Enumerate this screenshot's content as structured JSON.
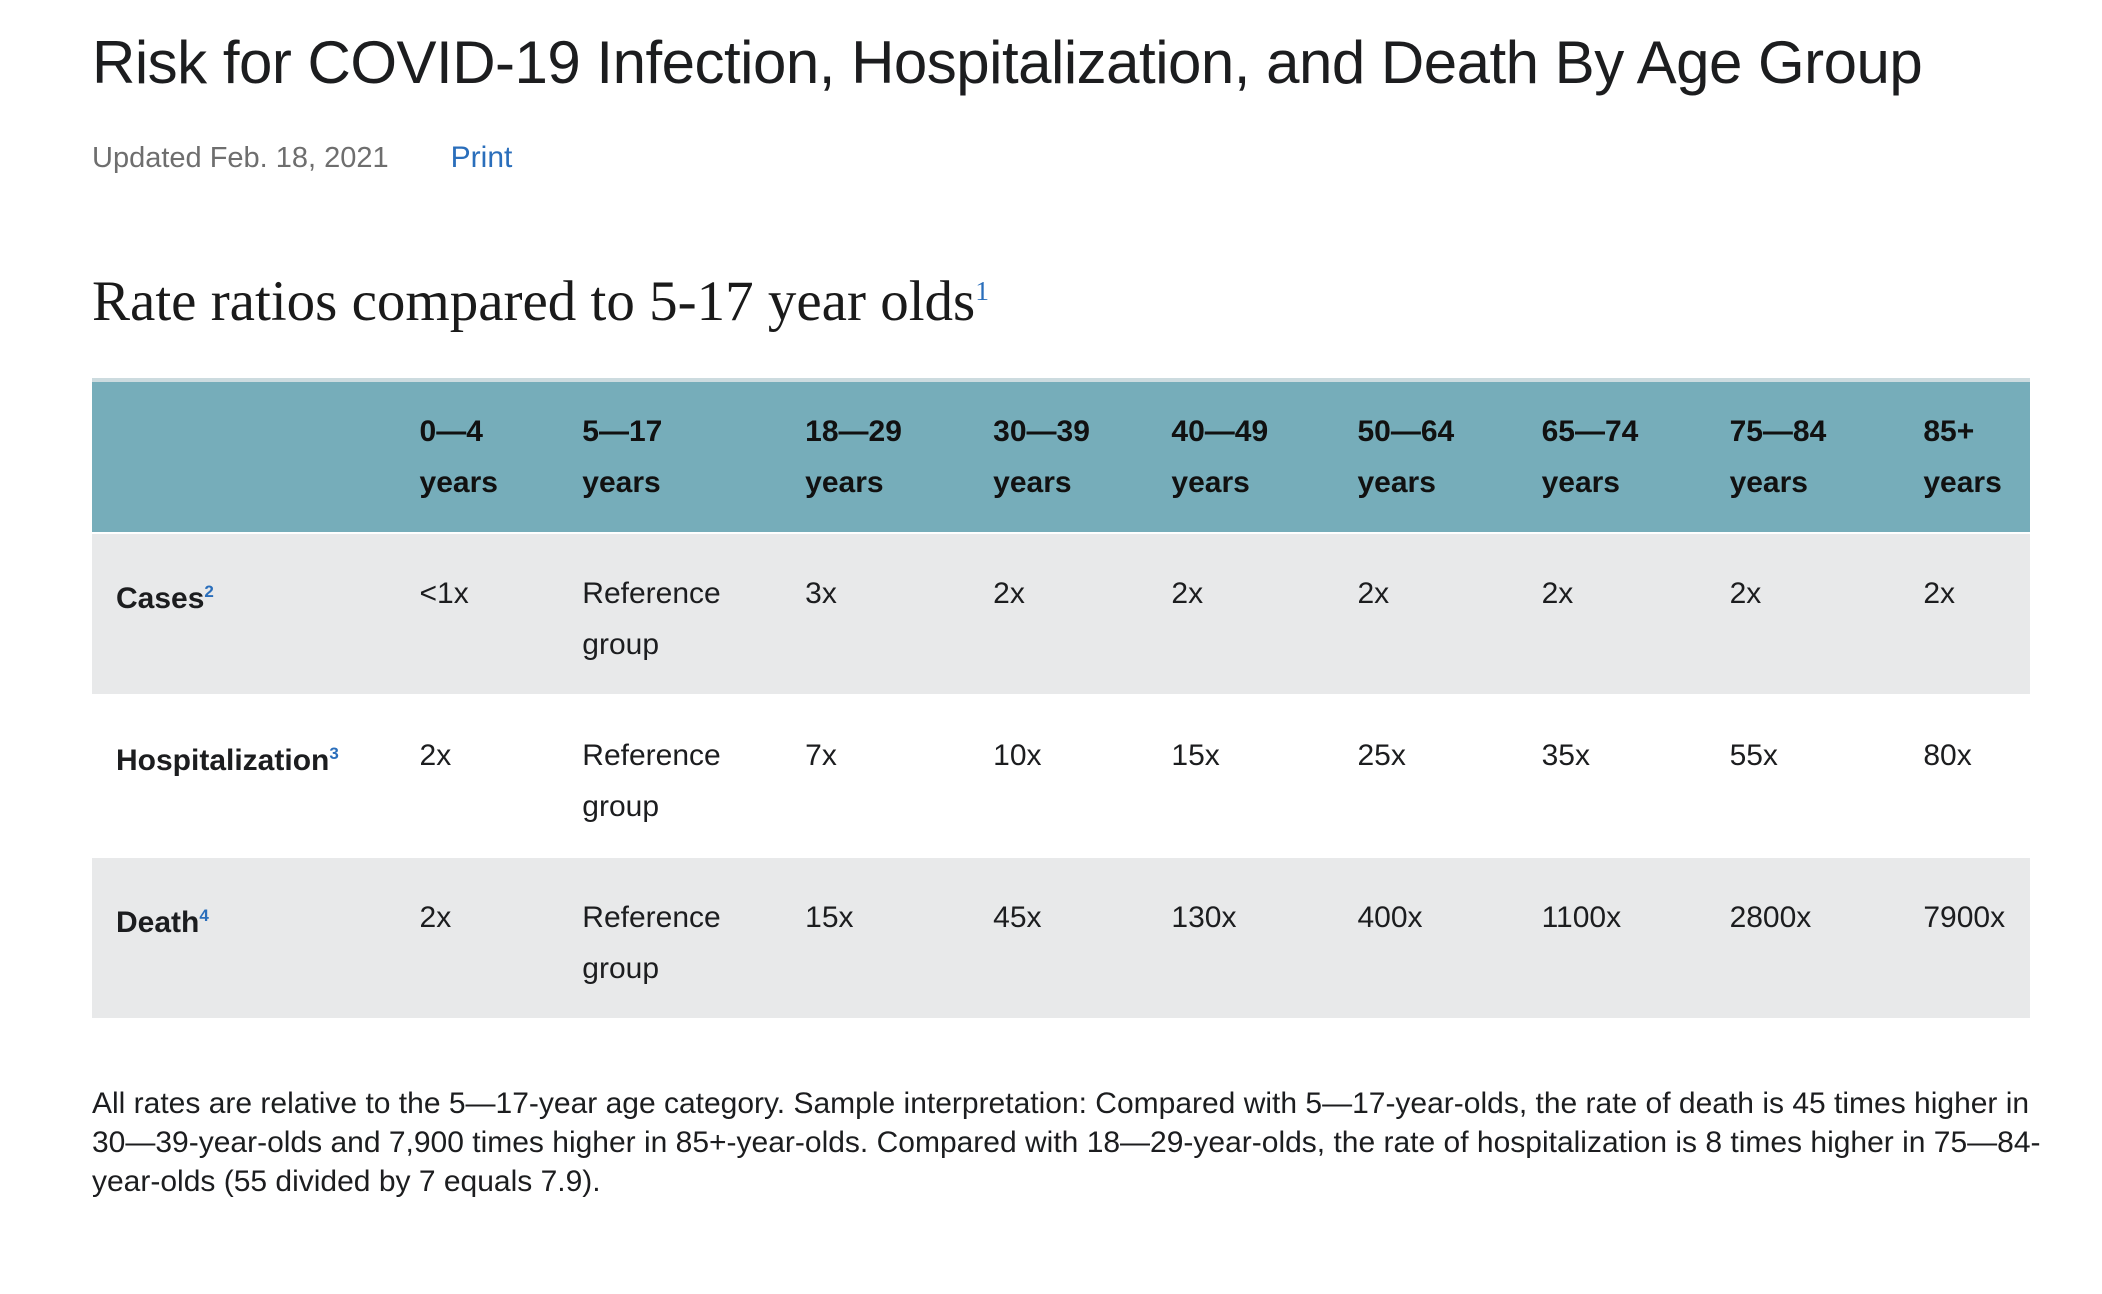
{
  "page": {
    "title": "Risk for COVID-19 Infection, Hospitalization, and Death By Age Group",
    "updated": "Updated Feb. 18, 2021",
    "print_label": "Print"
  },
  "section": {
    "heading": "Rate ratios compared to 5-17 year olds",
    "heading_footnote": "1"
  },
  "table": {
    "columns": [
      "0—4\nyears",
      "5—17\nyears",
      "18—29\nyears",
      "30—39\nyears",
      "40—49\nyears",
      "50—64\nyears",
      "65—74\nyears",
      "75—84\nyears",
      "85+\nyears"
    ],
    "rows": [
      {
        "label": "Cases",
        "footnote": "2",
        "values": [
          "<1x",
          "Reference group",
          "3x",
          "2x",
          "2x",
          "2x",
          "2x",
          "2x",
          "2x"
        ]
      },
      {
        "label": "Hospitalization",
        "footnote": "3",
        "values": [
          "2x",
          "Reference group",
          "7x",
          "10x",
          "15x",
          "25x",
          "35x",
          "55x",
          "80x"
        ]
      },
      {
        "label": "Death",
        "footnote": "4",
        "values": [
          "2x",
          "Reference group",
          "15x",
          "45x",
          "130x",
          "400x",
          "1100x",
          "2800x",
          "7900x"
        ]
      }
    ]
  },
  "notes": {
    "interpretation": "All rates are relative to the 5—17-year age category. Sample interpretation: Compared with 5—17-year-olds, the rate of death is 45 times higher in 30—39-year-olds and 7,900 times higher in 85+-year-olds. Compared with 18—29-year-olds, the rate of hospitalization is 8 times higher in 75—84-year-olds (55 divided by 7 equals 7.9)."
  },
  "colors": {
    "table_header_bg": "#76adba",
    "stripe_row_bg": "#e8e9ea",
    "link_blue": "#2a6ebb",
    "muted_text": "#6e6e6e"
  }
}
